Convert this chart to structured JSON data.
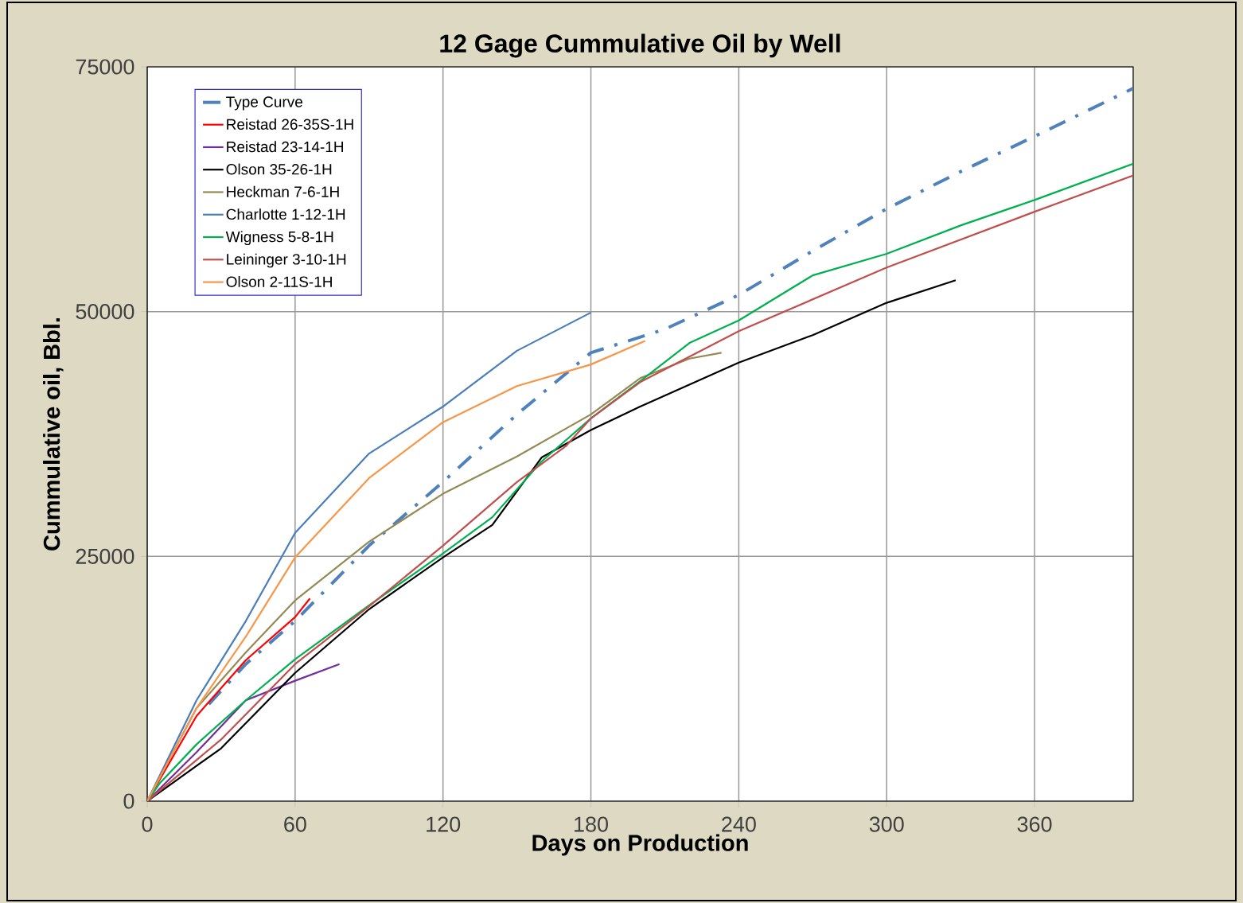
{
  "chart_data": {
    "type": "line",
    "title": "12 Gage Cummulative Oil by Well",
    "xlabel": "Days on Production",
    "ylabel": "Cummulative oil, Bbl.",
    "xlim": [
      0,
      400
    ],
    "ylim": [
      0,
      75000
    ],
    "xticks": [
      0,
      60,
      120,
      180,
      240,
      300,
      360
    ],
    "yticks": [
      0,
      25000,
      50000,
      75000
    ],
    "grid": true,
    "legend": "top left",
    "marker": "none",
    "series": [
      {
        "name": "Type Curve",
        "color": "#4f81bd",
        "line_style": "dashed",
        "x": [
          25,
          40,
          60,
          90,
          120,
          150,
          180,
          210,
          240,
          270,
          300,
          330,
          360,
          400
        ],
        "values": [
          9900,
          14000,
          18400,
          26100,
          32600,
          39500,
          45800,
          48200,
          51700,
          56200,
          60500,
          64300,
          67900,
          72800
        ]
      },
      {
        "name": "Reistad 26-35S-1H",
        "color": "#ff0000",
        "x": [
          0,
          20,
          40,
          60,
          66
        ],
        "values": [
          0,
          8700,
          14400,
          18800,
          20700
        ]
      },
      {
        "name": "Reistad 23-14-1H",
        "color": "#7030a0",
        "x": [
          0,
          20,
          40,
          60,
          78
        ],
        "values": [
          0,
          5000,
          10300,
          12300,
          14000
        ]
      },
      {
        "name": "Olson 35-26-1H",
        "color": "#000000",
        "x": [
          0,
          30,
          60,
          90,
          120,
          140,
          160,
          180,
          200,
          240,
          270,
          300,
          328
        ],
        "values": [
          0,
          5400,
          13100,
          19600,
          24900,
          28200,
          35100,
          37900,
          40300,
          44800,
          47600,
          50900,
          53200
        ]
      },
      {
        "name": "Heckman 7-6-1H",
        "color": "#948a54",
        "x": [
          0,
          20,
          40,
          60,
          90,
          120,
          150,
          180,
          200,
          220,
          233
        ],
        "values": [
          0,
          9500,
          15200,
          20500,
          26500,
          31400,
          35200,
          39500,
          43200,
          45200,
          45800
        ]
      },
      {
        "name": "Charlotte 1-12-1H",
        "color": "#4a7ebb",
        "x": [
          0,
          20,
          40,
          60,
          90,
          120,
          150,
          180
        ],
        "values": [
          0,
          10300,
          18400,
          27400,
          35500,
          40300,
          46000,
          49900
        ]
      },
      {
        "name": "Wigness 5-8-1H",
        "color": "#00b050",
        "x": [
          0,
          5,
          20,
          40,
          60,
          90,
          120,
          140,
          160,
          180,
          200,
          220,
          240,
          270,
          300,
          330,
          360,
          400
        ],
        "values": [
          0,
          1800,
          5800,
          10300,
          14500,
          20000,
          25300,
          29000,
          34700,
          39100,
          42900,
          46800,
          49100,
          53700,
          55900,
          58800,
          61400,
          65100
        ]
      },
      {
        "name": "Leininger 3-10-1H",
        "color": "#c0504d",
        "x": [
          0,
          30,
          60,
          90,
          120,
          150,
          170,
          180,
          200,
          240,
          300,
          360,
          400
        ],
        "values": [
          0,
          6300,
          14000,
          19900,
          26100,
          32600,
          36300,
          39100,
          42800,
          48000,
          54500,
          60200,
          63900
        ]
      },
      {
        "name": "Olson 2-11S-1H",
        "color": "#f79646",
        "x": [
          0,
          20,
          40,
          60,
          90,
          120,
          150,
          180,
          202
        ],
        "values": [
          0,
          9500,
          16800,
          24900,
          33000,
          38700,
          42400,
          44600,
          47000
        ]
      }
    ]
  }
}
